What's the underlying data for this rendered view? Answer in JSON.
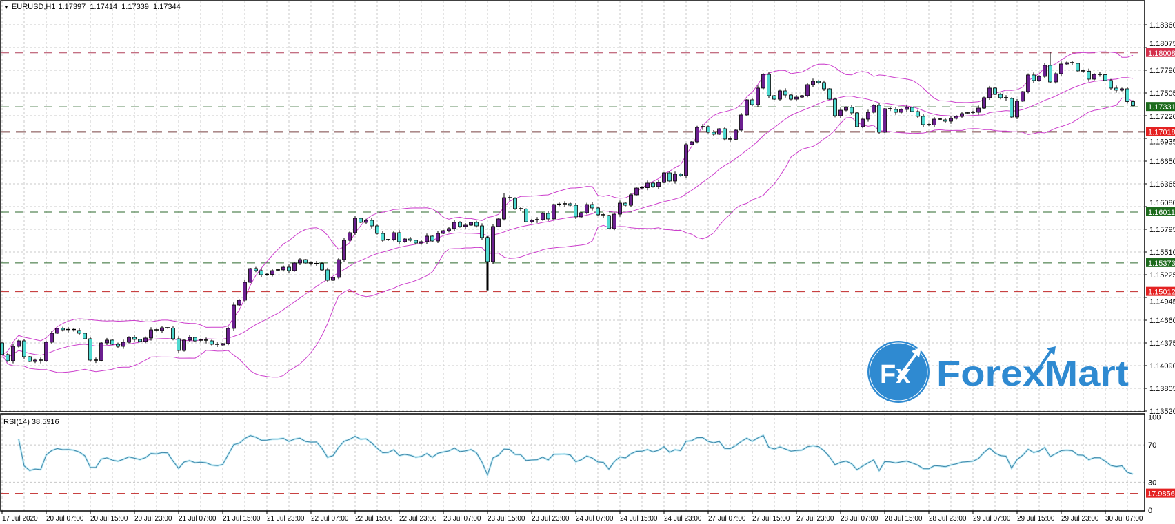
{
  "header": {
    "symbol": "EURUSD,H1",
    "open": "1.17397",
    "high": "1.17414",
    "low": "1.17339",
    "close": "1.17344"
  },
  "rsi_label": {
    "name": "RSI(14)",
    "value": "38.5916"
  },
  "logo": {
    "mark": "Fx",
    "text": "ForexMart",
    "color": "#2f8ad1"
  },
  "colors": {
    "bull": "#6b1f8f",
    "bear": "#4fd9d0",
    "bands": "#cc3fcc",
    "rsi_line": "#3f86a8",
    "grid": "#c8c8c8"
  },
  "chart_data": {
    "type": "candlestick",
    "symbol": "EURUSD",
    "timeframe": "H1",
    "ylim": [
      1.135,
      1.1866
    ],
    "price_ticks": [
      "1.18360",
      "1.18075",
      "1.17790",
      "1.17505",
      "1.17220",
      "1.16935",
      "1.16650",
      "1.16365",
      "1.16080",
      "1.15795",
      "1.15510",
      "1.15225",
      "1.14945",
      "1.14660",
      "1.14375",
      "1.14090",
      "1.13805",
      "1.13520"
    ],
    "time_labels": [
      "17 Jul 2020",
      "20 Jul 07:00",
      "20 Jul 15:00",
      "20 Jul 23:00",
      "21 Jul 07:00",
      "21 Jul 15:00",
      "21 Jul 23:00",
      "22 Jul 07:00",
      "22 Jul 15:00",
      "22 Jul 23:00",
      "23 Jul 07:00",
      "23 Jul 15:00",
      "23 Jul 23:00",
      "24 Jul 07:00",
      "24 Jul 15:00",
      "24 Jul 23:00",
      "27 Jul 07:00",
      "27 Jul 15:00",
      "27 Jul 23:00",
      "28 Jul 07:00",
      "28 Jul 15:00",
      "28 Jul 23:00",
      "29 Jul 07:00",
      "29 Jul 15:00",
      "29 Jul 23:00",
      "30 Jul 07:00"
    ],
    "candles": {
      "first_open": 1.1437,
      "close": [
        1.14224,
        1.14146,
        1.14327,
        1.14396,
        1.14198,
        1.14137,
        1.14154,
        1.14146,
        1.14379,
        1.14491,
        1.14552,
        1.14534,
        1.14538,
        1.14526,
        1.14491,
        1.14422,
        1.14154,
        1.1415,
        1.1437,
        1.14405,
        1.14353,
        1.14327,
        1.14379,
        1.14439,
        1.14414,
        1.14388,
        1.14431,
        1.14534,
        1.14526,
        1.1456,
        1.14556,
        1.14422,
        1.14275,
        1.14405,
        1.14439,
        1.14396,
        1.14405,
        1.14396,
        1.14353,
        1.14344,
        1.14362,
        1.14552,
        1.14845,
        1.14906,
        1.1513,
        1.15303,
        1.15277,
        1.15225,
        1.15229,
        1.15277,
        1.15286,
        1.1532,
        1.15277,
        1.15372,
        1.15415,
        1.15372,
        1.15363,
        1.15366,
        1.15286,
        1.15156,
        1.15191,
        1.15415,
        1.15657,
        1.15752,
        1.15933,
        1.15882,
        1.15907,
        1.15838,
        1.15743,
        1.15657,
        1.15666,
        1.15752,
        1.1564,
        1.15674,
        1.15657,
        1.15622,
        1.1564,
        1.15709,
        1.15648,
        1.15743,
        1.15778,
        1.15804,
        1.15882,
        1.1583,
        1.15847,
        1.15882,
        1.15838,
        1.15692,
        1.15389,
        1.1583,
        1.15925,
        1.16192,
        1.16184,
        1.16054,
        1.1605,
        1.1589,
        1.15907,
        1.15916,
        1.15994,
        1.15925,
        1.16106,
        1.1611,
        1.16115,
        1.16097,
        1.15951,
        1.16002,
        1.16106,
        1.16063,
        1.15977,
        1.15968,
        1.15804,
        1.15985,
        1.16123,
        1.16097,
        1.16227,
        1.16313,
        1.16317,
        1.16374,
        1.16331,
        1.16382,
        1.16503,
        1.164,
        1.16486,
        1.16469,
        1.16857,
        1.16892,
        1.17073,
        1.17082,
        1.17013,
        1.16987,
        1.17056,
        1.16927,
        1.16923,
        1.17039,
        1.17229,
        1.17419,
        1.17358,
        1.17566,
        1.17738,
        1.17471,
        1.17427,
        1.17531,
        1.17479,
        1.17427,
        1.17453,
        1.17471,
        1.17609,
        1.17652,
        1.17635,
        1.17557,
        1.17427,
        1.1722,
        1.17289,
        1.17324,
        1.17255,
        1.17082,
        1.17177,
        1.17263,
        1.1735,
        1.17013,
        1.17307,
        1.17298,
        1.17263,
        1.17298,
        1.17324,
        1.17272,
        1.17212,
        1.17108,
        1.17104,
        1.17177,
        1.17168,
        1.17151,
        1.17186,
        1.17212,
        1.17246,
        1.17255,
        1.17263,
        1.17315,
        1.17445,
        1.17566,
        1.17488,
        1.17445,
        1.17436,
        1.17203,
        1.17402,
        1.17522,
        1.1773,
        1.17661,
        1.17712,
        1.17851,
        1.17643,
        1.17747,
        1.17868,
        1.17885,
        1.17876,
        1.17782,
        1.17778,
        1.17678,
        1.17738,
        1.17734,
        1.17661,
        1.17566,
        1.1754,
        1.17557,
        1.17397,
        1.17344
      ],
      "extremes": [
        {
          "index": 88,
          "low": 1.1503
        },
        {
          "index": 91,
          "high": 1.16244
        },
        {
          "index": 190,
          "high": 1.18023
        },
        {
          "index": 205,
          "high": 1.17414,
          "low": 1.17339
        }
      ]
    },
    "levels": [
      {
        "price": "1.18008",
        "line": "#b0405a",
        "label_bg": "#d4304c",
        "style": "dashed"
      },
      {
        "price": "1.17331",
        "line": "#2d6a2d",
        "label_bg": "#1d6b1d",
        "style": "dashed"
      },
      {
        "price": "1.17018",
        "line": "#7a4444",
        "label_bg": "#e42222",
        "style": "thick-dashed"
      },
      {
        "price": "1.16011",
        "line": "#2d6a2d",
        "label_bg": "#1d6b1d",
        "style": "dashed"
      },
      {
        "price": "1.15373",
        "line": "#2d6a2d",
        "label_bg": "#1d6b1d",
        "style": "dashed"
      },
      {
        "price": "1.15012",
        "line": "#c02828",
        "label_bg": "#e42222",
        "style": "dashed"
      }
    ],
    "rsi": {
      "current": 38.5916,
      "ylim": [
        0,
        100
      ],
      "ticks": [
        "100",
        "70",
        "30",
        "0"
      ],
      "levels": [
        {
          "value": "17.9856",
          "line": "#c02828",
          "label_bg": "#e42222"
        }
      ]
    }
  }
}
